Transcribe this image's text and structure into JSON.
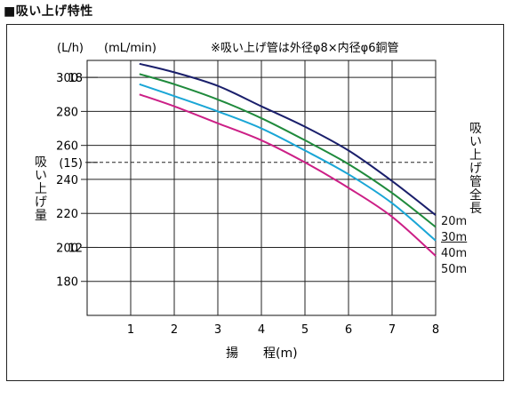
{
  "heading": "■吸い上げ特性",
  "note": "※吸い上げ管は外径φ8×内径φ6銅管",
  "chart_data": {
    "type": "line",
    "title": "吸い上げ特性",
    "xlabel": "揚　　程(m)",
    "ylabel": "吸い上げ量",
    "y_unit_primary": "(mL/min)",
    "y_unit_secondary": "(L/h)",
    "legend_title": "吸い上げ管全長",
    "xlim": [
      0,
      8
    ],
    "ylim": [
      160,
      310
    ],
    "x_ticks": [
      "1",
      "2",
      "3",
      "4",
      "5",
      "6",
      "7",
      "8"
    ],
    "y_ticks": [
      "180",
      "200",
      "220",
      "240",
      "260",
      "280",
      "300"
    ],
    "y_secondary_ticks": [
      {
        "label": "18",
        "at_ml_min": 300
      },
      {
        "label": "(15)",
        "at_ml_min": 250
      },
      {
        "label": "12",
        "at_ml_min": 200
      }
    ],
    "reference_line": {
      "y": 250,
      "style": "dashed"
    },
    "grid": true,
    "series": [
      {
        "name": "20m",
        "color": "#1a1f6b",
        "x": [
          1.2,
          2,
          3,
          4,
          5,
          6,
          7,
          8
        ],
        "y": [
          308,
          303,
          295,
          283,
          271,
          257,
          239,
          219
        ]
      },
      {
        "name": "30m",
        "color": "#1f8a3c",
        "x": [
          1.2,
          2,
          3,
          4,
          5,
          6,
          7,
          8
        ],
        "y": [
          302,
          296,
          287,
          276,
          263,
          249,
          232,
          212
        ]
      },
      {
        "name": "40m",
        "color": "#1aa6d6",
        "x": [
          1.2,
          2,
          3,
          4,
          5,
          6,
          7,
          8
        ],
        "y": [
          296,
          289,
          280,
          270,
          257,
          243,
          226,
          204
        ]
      },
      {
        "name": "50m",
        "color": "#cc1f86",
        "x": [
          1.2,
          2,
          3,
          4,
          5,
          6,
          7,
          8
        ],
        "y": [
          290,
          283,
          273,
          263,
          250,
          235,
          218,
          195
        ]
      }
    ],
    "selected_series": "30m"
  }
}
